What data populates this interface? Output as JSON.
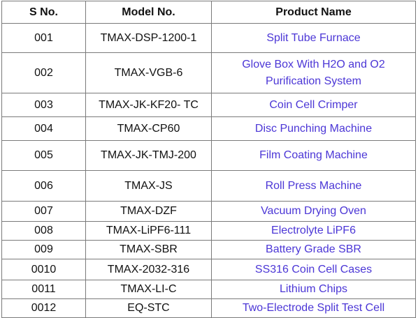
{
  "table": {
    "headers": [
      "S No.",
      "Model No.",
      "Product Name"
    ],
    "rows": [
      {
        "sno": "001",
        "model": "TMAX-DSP-1200-1",
        "product": "Split Tube Furnace"
      },
      {
        "sno": "002",
        "model": "TMAX-VGB-6",
        "product": "Glove Box With H2O and O2 Purification System"
      },
      {
        "sno": "003",
        "model": "TMAX-JK-KF20- TC",
        "product": "Coin Cell Crimper"
      },
      {
        "sno": "004",
        "model": "TMAX-CP60",
        "product": "Disc Punching Machine"
      },
      {
        "sno": "005",
        "model": "TMAX-JK-TMJ-200",
        "product": "Film Coating Machine"
      },
      {
        "sno": "006",
        "model": "TMAX-JS",
        "product": "Roll Press Machine"
      },
      {
        "sno": "007",
        "model": "TMAX-DZF",
        "product": "Vacuum Drying Oven"
      },
      {
        "sno": "008",
        "model": "TMAX-LiPF6-111",
        "product": "Electrolyte LiPF6"
      },
      {
        "sno": "009",
        "model": "TMAX-SBR",
        "product": "Battery Grade SBR"
      },
      {
        "sno": "0010",
        "model": "TMAX-2032-316",
        "product": "SS316 Coin Cell Cases"
      },
      {
        "sno": "0011",
        "model": "TMAX-LI-C",
        "product": "Lithium Chips"
      },
      {
        "sno": "0012",
        "model": "EQ-STC",
        "product": "Two-Electrode Split Test Cell"
      }
    ]
  },
  "colors": {
    "link": "#4b36d6",
    "border": "#7a7a7a",
    "text": "#111111"
  }
}
